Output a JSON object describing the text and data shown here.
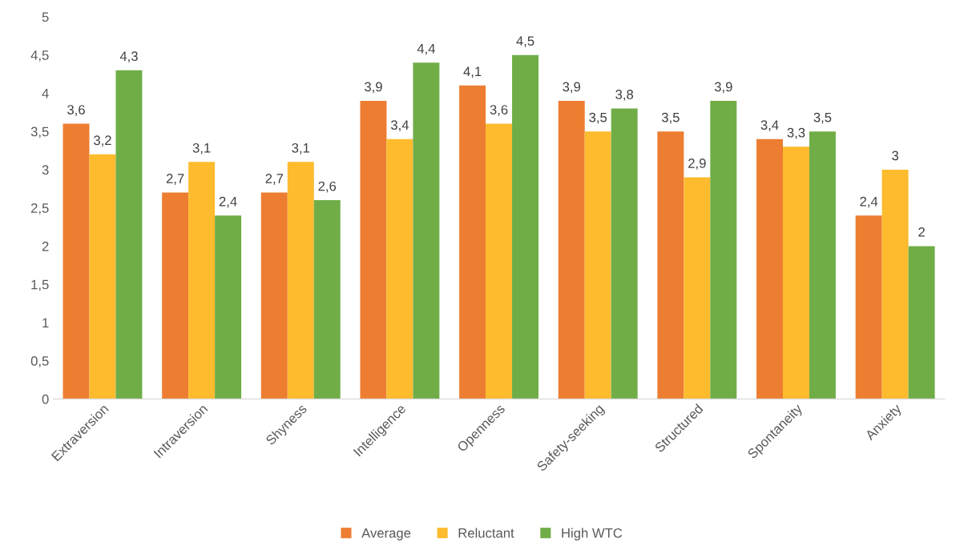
{
  "chart_data": {
    "type": "bar",
    "categories": [
      "Extraversion",
      "Intraversion",
      "Shyness",
      "Intelligence",
      "Openness",
      "Safety-seeking",
      "Structured",
      "Spontaneity",
      "Anxiety"
    ],
    "series": [
      {
        "name": "Average",
        "color": "#ed7d31",
        "values": [
          3.6,
          2.7,
          2.7,
          3.9,
          4.1,
          3.9,
          3.5,
          3.4,
          2.4
        ],
        "value_labels": [
          "3,6",
          "2,7",
          "2,7",
          "3,9",
          "4,1",
          "3,9",
          "3,5",
          "3,4",
          "2,4"
        ]
      },
      {
        "name": "Reluctant",
        "color": "#fdbb2d",
        "values": [
          3.2,
          3.1,
          3.1,
          3.4,
          3.6,
          3.5,
          2.9,
          3.3,
          3
        ],
        "value_labels": [
          "3,2",
          "3,1",
          "3,1",
          "3,4",
          "3,6",
          "3,5",
          "2,9",
          "3,3",
          "3"
        ]
      },
      {
        "name": "High WTC",
        "color": "#70ad47",
        "values": [
          4.3,
          2.4,
          2.6,
          4.4,
          4.5,
          3.8,
          3.9,
          3.5,
          2
        ],
        "value_labels": [
          "4,3",
          "2,4",
          "2,6",
          "4,4",
          "4,5",
          "3,8",
          "3,9",
          "3,5",
          "2"
        ]
      }
    ],
    "ylim": [
      0,
      5
    ],
    "yticks": [
      0,
      {
        "value": 0.5,
        "label": "0,5"
      },
      1,
      {
        "value": 1.5,
        "label": "1,5"
      },
      2,
      {
        "value": 2.5,
        "label": "2,5"
      },
      3,
      {
        "value": 3.5,
        "label": "3,5"
      },
      4,
      {
        "value": 4.5,
        "label": "4,5"
      },
      5
    ],
    "grid": false,
    "legend": "bottom"
  }
}
